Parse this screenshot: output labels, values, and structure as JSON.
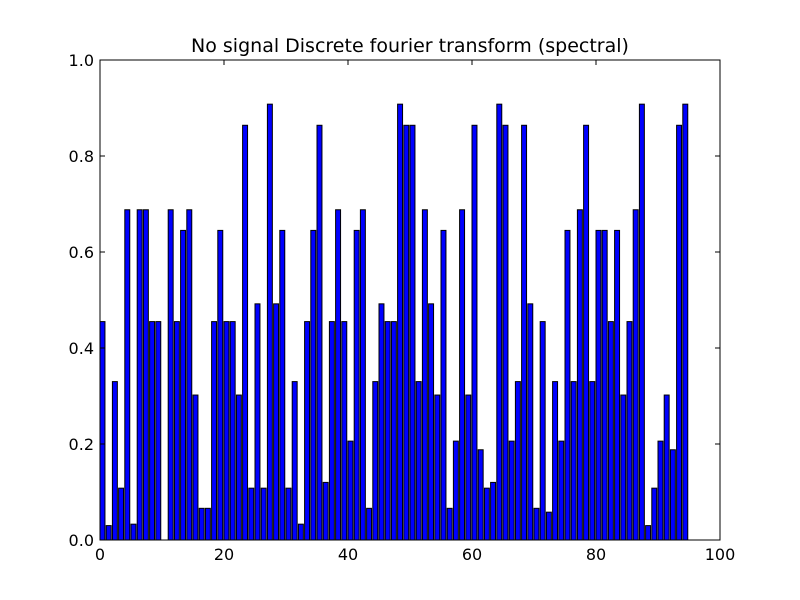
{
  "chart_data": {
    "type": "bar",
    "title": "No signal Discrete fourier transform (spectral)",
    "xlabel": "",
    "ylabel": "",
    "xlim": [
      0,
      100
    ],
    "ylim": [
      0.0,
      1.0
    ],
    "xticks": [
      "0",
      "20",
      "40",
      "60",
      "80",
      "100"
    ],
    "yticks": [
      "0.0",
      "0.2",
      "0.4",
      "0.6",
      "0.8",
      "1.0"
    ],
    "grid": false,
    "bar_color": "#0000ff",
    "edge_color": "#000000",
    "x": [
      0,
      1,
      2,
      3,
      4,
      5,
      6,
      7,
      8,
      9,
      10,
      11,
      12,
      13,
      14,
      15,
      16,
      17,
      18,
      19,
      20,
      21,
      22,
      23,
      24,
      25,
      26,
      27,
      28,
      29,
      30,
      31,
      32,
      33,
      34,
      35,
      36,
      37,
      38,
      39,
      40,
      41,
      42,
      43,
      44,
      45,
      46,
      47,
      48,
      49,
      50,
      51,
      52,
      53,
      54,
      55,
      56,
      57,
      58,
      59,
      60,
      61,
      62,
      63,
      64,
      65,
      66,
      67,
      68,
      69,
      70,
      71,
      72,
      73,
      74,
      75,
      76,
      77,
      78,
      79,
      80,
      81,
      82,
      83,
      84,
      85,
      86,
      87,
      88,
      89,
      90,
      91,
      92,
      93,
      94,
      95
    ],
    "values": [
      0.455,
      0.03,
      0.33,
      0.108,
      0.688,
      0.033,
      0.688,
      0.688,
      0.455,
      0.455,
      0.0,
      0.688,
      0.455,
      0.645,
      0.688,
      0.302,
      0.066,
      0.066,
      0.455,
      0.645,
      0.455,
      0.455,
      0.302,
      0.864,
      0.108,
      0.492,
      0.108,
      0.908,
      0.492,
      0.645,
      0.108,
      0.33,
      0.033,
      0.455,
      0.645,
      0.864,
      0.12,
      0.455,
      0.688,
      0.455,
      0.206,
      0.645,
      0.688,
      0.066,
      0.33,
      0.492,
      0.455,
      0.455,
      0.908,
      0.864,
      0.864,
      0.33,
      0.688,
      0.492,
      0.302,
      0.645,
      0.066,
      0.206,
      0.688,
      0.302,
      0.864,
      0.188,
      0.108,
      0.12,
      0.908,
      0.864,
      0.206,
      0.33,
      0.864,
      0.492,
      0.066,
      0.455,
      0.058,
      0.33,
      0.206,
      0.645,
      0.33,
      0.688,
      0.864,
      0.33,
      0.645,
      0.645,
      0.455,
      0.645,
      0.302,
      0.455,
      0.688,
      0.908,
      0.03,
      0.108,
      0.206,
      0.302,
      0.188,
      0.864,
      0.908,
      0.0
    ]
  }
}
